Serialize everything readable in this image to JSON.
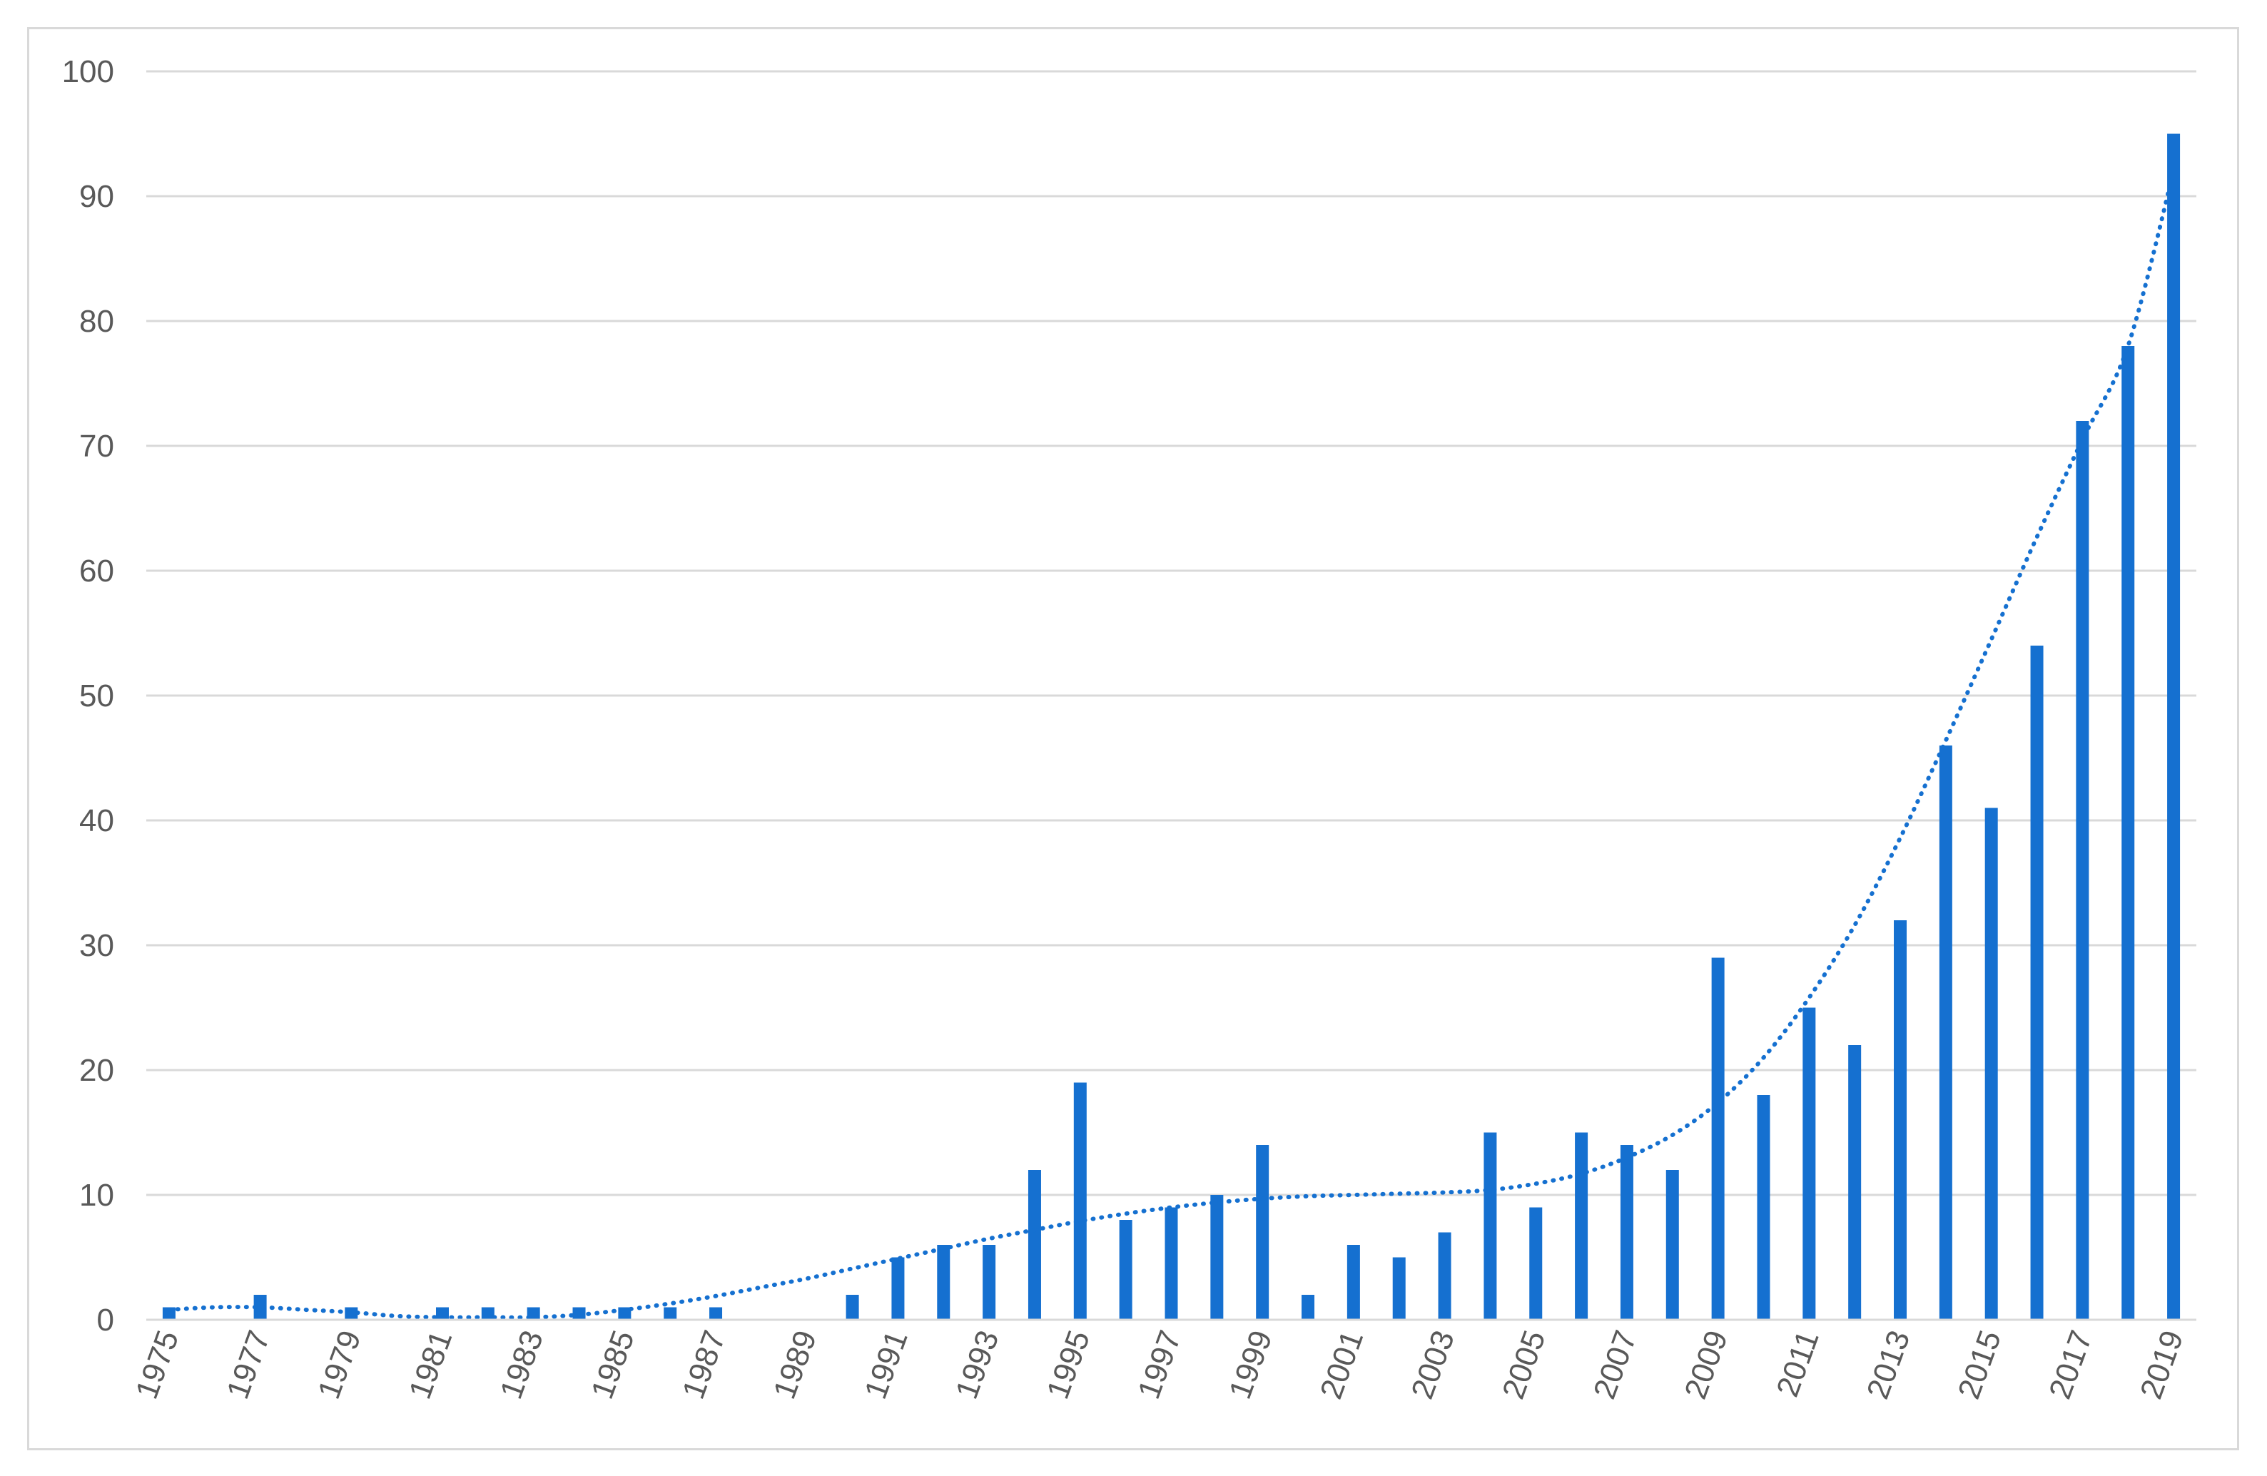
{
  "chart_data": {
    "type": "bar",
    "title": "",
    "xlabel": "",
    "ylabel": "",
    "ylim": [
      0,
      100
    ],
    "yticks": [
      0,
      10,
      20,
      30,
      40,
      50,
      60,
      70,
      80,
      90,
      100
    ],
    "grid": true,
    "legend": "none",
    "x_tick_labels": [
      "1975",
      "1977",
      "1979",
      "1981",
      "1983",
      "1985",
      "1987",
      "1989",
      "1991",
      "1993",
      "1995",
      "1997",
      "1999",
      "2001",
      "2003",
      "2005",
      "2007",
      "2009",
      "2011",
      "2013",
      "2015",
      "2017",
      "2019"
    ],
    "categories": [
      1975,
      1976,
      1977,
      1978,
      1979,
      1980,
      1981,
      1982,
      1983,
      1984,
      1985,
      1986,
      1987,
      1988,
      1989,
      1990,
      1991,
      1992,
      1993,
      1994,
      1995,
      1996,
      1997,
      1998,
      1999,
      2000,
      2001,
      2002,
      2003,
      2004,
      2005,
      2006,
      2007,
      2008,
      2009,
      2010,
      2011,
      2012,
      2013,
      2014,
      2015,
      2016,
      2017,
      2018,
      2019
    ],
    "values": [
      1,
      0,
      2,
      0,
      1,
      0,
      1,
      1,
      1,
      1,
      1,
      1,
      1,
      0,
      0,
      2,
      5,
      6,
      6,
      12,
      19,
      8,
      9,
      10,
      14,
      2,
      6,
      5,
      7,
      15,
      9,
      15,
      14,
      12,
      29,
      18,
      25,
      22,
      32,
      46,
      41,
      54,
      72,
      78,
      95
    ],
    "trendline": {
      "style": "dotted",
      "values": [
        0.8,
        1.0,
        1.0,
        0.8,
        0.6,
        0.3,
        0.2,
        0.2,
        0.2,
        0.4,
        0.8,
        1.3,
        1.9,
        2.6,
        3.3,
        4.1,
        4.9,
        5.7,
        6.5,
        7.2,
        7.9,
        8.5,
        9.0,
        9.4,
        9.7,
        9.9,
        10.0,
        10.1,
        10.2,
        10.4,
        10.9,
        11.7,
        13.0,
        14.8,
        17.4,
        21.0,
        25.8,
        31.6,
        38.6,
        46.4,
        54.5,
        62.7,
        70.5,
        78.0,
        92.0
      ]
    },
    "colors": {
      "bar": "#1570d0",
      "trendline": "#1570d0",
      "grid": "#d9d9d9",
      "text": "#595959"
    }
  }
}
